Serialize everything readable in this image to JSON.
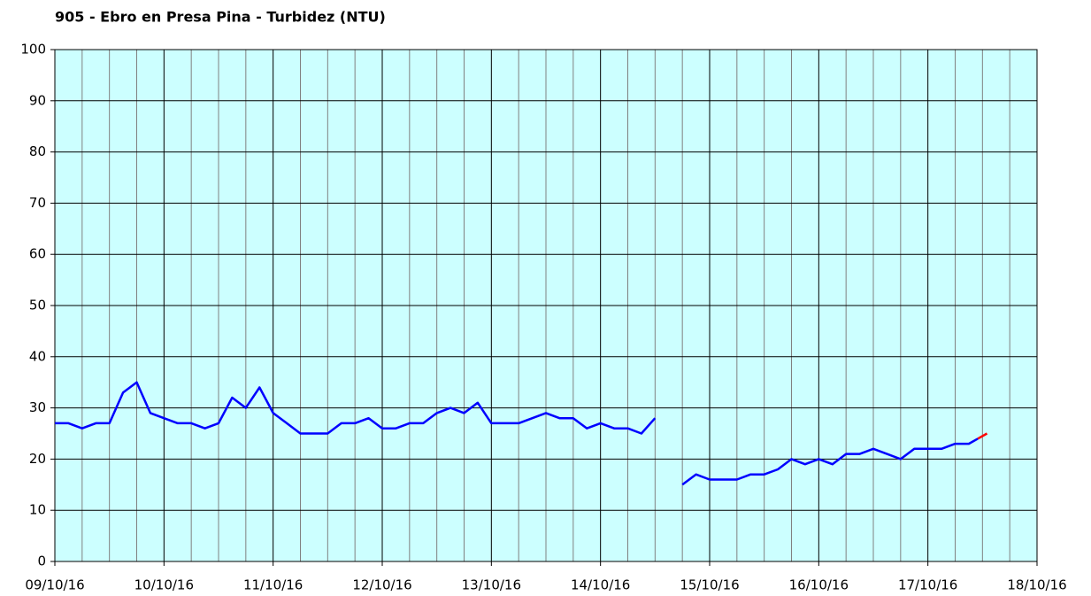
{
  "chart_data": {
    "type": "line",
    "title": "905 - Ebro en Presa Pina - Turbidez (NTU)",
    "x": [
      "2016-10-09T00:00",
      "2016-10-09T03:00",
      "2016-10-09T06:00",
      "2016-10-09T09:00",
      "2016-10-09T12:00",
      "2016-10-09T15:00",
      "2016-10-09T18:00",
      "2016-10-09T21:00",
      "2016-10-10T00:00",
      "2016-10-10T03:00",
      "2016-10-10T06:00",
      "2016-10-10T09:00",
      "2016-10-10T12:00",
      "2016-10-10T15:00",
      "2016-10-10T18:00",
      "2016-10-10T21:00",
      "2016-10-11T00:00",
      "2016-10-11T03:00",
      "2016-10-11T06:00",
      "2016-10-11T09:00",
      "2016-10-11T12:00",
      "2016-10-11T15:00",
      "2016-10-11T18:00",
      "2016-10-11T21:00",
      "2016-10-12T00:00",
      "2016-10-12T03:00",
      "2016-10-12T06:00",
      "2016-10-12T09:00",
      "2016-10-12T12:00",
      "2016-10-12T15:00",
      "2016-10-12T18:00",
      "2016-10-12T21:00",
      "2016-10-13T00:00",
      "2016-10-13T03:00",
      "2016-10-13T06:00",
      "2016-10-13T09:00",
      "2016-10-13T12:00",
      "2016-10-13T15:00",
      "2016-10-13T18:00",
      "2016-10-13T21:00",
      "2016-10-14T00:00",
      "2016-10-14T03:00",
      "2016-10-14T06:00",
      "2016-10-14T09:00",
      "2016-10-14T12:00",
      "2016-10-14T15:00",
      "2016-10-14T18:00",
      "2016-10-14T21:00",
      "2016-10-15T00:00",
      "2016-10-15T03:00",
      "2016-10-15T06:00",
      "2016-10-15T09:00",
      "2016-10-15T12:00",
      "2016-10-15T15:00",
      "2016-10-15T18:00",
      "2016-10-15T21:00",
      "2016-10-16T00:00",
      "2016-10-16T03:00",
      "2016-10-16T06:00",
      "2016-10-16T09:00",
      "2016-10-16T12:00",
      "2016-10-16T15:00",
      "2016-10-16T18:00",
      "2016-10-16T21:00",
      "2016-10-17T00:00",
      "2016-10-17T03:00",
      "2016-10-17T06:00",
      "2016-10-17T09:00",
      "2016-10-17T11:00",
      "2016-10-17T13:00"
    ],
    "series": [
      {
        "color": "#0000ff",
        "values": [
          27,
          27,
          26,
          27,
          27,
          33,
          35,
          29,
          28,
          27,
          27,
          26,
          27,
          32,
          30,
          34,
          29,
          27,
          25,
          25,
          25,
          27,
          27,
          28,
          26,
          26,
          27,
          27,
          29,
          30,
          29,
          31,
          27,
          27,
          27,
          28,
          29,
          28,
          28,
          26,
          27,
          26,
          26,
          25,
          28,
          null,
          15,
          17,
          16,
          16,
          16,
          17,
          17,
          18,
          20,
          19,
          20,
          19,
          21,
          21,
          22,
          21,
          20,
          22,
          22,
          22,
          23,
          23,
          24,
          null
        ]
      },
      {
        "color": "#ff0000",
        "values": [
          null,
          null,
          null,
          null,
          null,
          null,
          null,
          null,
          null,
          null,
          null,
          null,
          null,
          null,
          null,
          null,
          null,
          null,
          null,
          null,
          null,
          null,
          null,
          null,
          null,
          null,
          null,
          null,
          null,
          null,
          null,
          null,
          null,
          null,
          null,
          null,
          null,
          null,
          null,
          null,
          null,
          null,
          null,
          null,
          null,
          null,
          null,
          null,
          null,
          null,
          null,
          null,
          null,
          null,
          null,
          null,
          null,
          null,
          null,
          null,
          null,
          null,
          null,
          null,
          null,
          null,
          null,
          null,
          24,
          25
        ]
      }
    ],
    "xlim": [
      "2016-10-09T00:00",
      "2016-10-18T00:00"
    ],
    "xticks": [
      {
        "value": "2016-10-09T00:00",
        "label": "09/10/16"
      },
      {
        "value": "2016-10-10T00:00",
        "label": "10/10/16"
      },
      {
        "value": "2016-10-11T00:00",
        "label": "11/10/16"
      },
      {
        "value": "2016-10-12T00:00",
        "label": "12/10/16"
      },
      {
        "value": "2016-10-13T00:00",
        "label": "13/10/16"
      },
      {
        "value": "2016-10-14T00:00",
        "label": "14/10/16"
      },
      {
        "value": "2016-10-15T00:00",
        "label": "15/10/16"
      },
      {
        "value": "2016-10-16T00:00",
        "label": "16/10/16"
      },
      {
        "value": "2016-10-17T00:00",
        "label": "17/10/16"
      },
      {
        "value": "2016-10-18T00:00",
        "label": "18/10/16"
      }
    ],
    "ylim": [
      0,
      100
    ],
    "yticks": [
      0,
      10,
      20,
      30,
      40,
      50,
      60,
      70,
      80,
      90,
      100
    ],
    "grid": true,
    "plot_background": "#ccffff"
  }
}
